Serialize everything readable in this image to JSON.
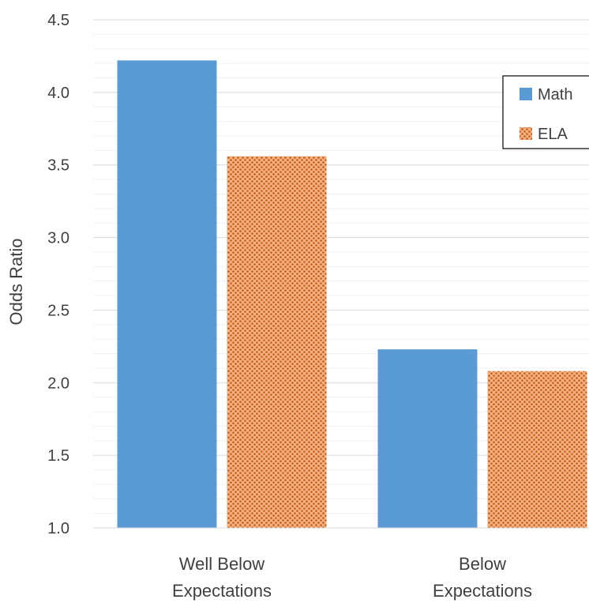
{
  "chart_data": {
    "type": "bar",
    "title": "",
    "xlabel": "",
    "ylabel": "Odds Ratio",
    "ylim": [
      1.0,
      4.5
    ],
    "yticks": [
      "1.0",
      "1.5",
      "2.0",
      "2.5",
      "3.0",
      "3.5",
      "4.0",
      "4.5"
    ],
    "grid": true,
    "legend_position": "top-right",
    "categories": [
      [
        "Well Below",
        "Expectations"
      ],
      [
        "Below",
        "Expectations"
      ]
    ],
    "series": [
      {
        "name": "Math",
        "values": [
          4.22,
          2.23
        ],
        "color": "#5B9BD5",
        "pattern": "solid"
      },
      {
        "name": "ELA",
        "values": [
          3.56,
          2.08
        ],
        "color": "#C55A11",
        "pattern": "dotted"
      }
    ]
  }
}
